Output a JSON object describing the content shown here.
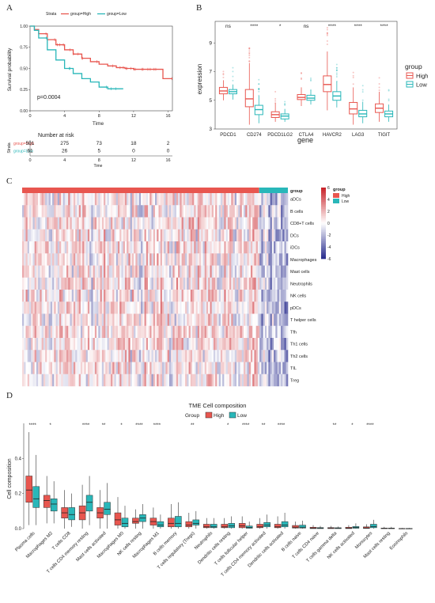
{
  "panel_labels": [
    "A",
    "B",
    "C",
    "D"
  ],
  "colors": {
    "high": "#e8564f",
    "low": "#29b7b9",
    "heat_low": "#2b2f8f",
    "heat_mid": "#ffffff",
    "heat_high": "#c9252c"
  },
  "chart_data": [
    {
      "panel": "A",
      "type": "line",
      "legend_title": "Strata",
      "legend": [
        "group=High",
        "group=Low"
      ],
      "ylabel": "Survival probability",
      "xlabel": "Time",
      "annotation": "p=0.0004",
      "xlim": [
        0,
        16.5
      ],
      "ylim": [
        0,
        1
      ],
      "x_ticks": [
        "0",
        "4",
        "8",
        "12",
        "16"
      ],
      "y_ticks": [
        "0.00",
        "0.25",
        "0.50",
        "0.75",
        "1.00"
      ],
      "series": [
        {
          "name": "group=High",
          "x": [
            0,
            0.5,
            1,
            2,
            3,
            4,
            5,
            6,
            7,
            8,
            9,
            10,
            11,
            12,
            13,
            14,
            15,
            15.4,
            16.5
          ],
          "y": [
            1.0,
            0.96,
            0.91,
            0.84,
            0.78,
            0.72,
            0.67,
            0.62,
            0.58,
            0.55,
            0.53,
            0.51,
            0.5,
            0.49,
            0.49,
            0.49,
            0.49,
            0.38,
            0.38
          ]
        },
        {
          "name": "group=Low",
          "x": [
            0,
            0.5,
            1,
            2,
            3,
            4,
            5,
            6,
            7,
            8,
            9,
            10,
            10.8
          ],
          "y": [
            1.0,
            0.95,
            0.86,
            0.72,
            0.6,
            0.5,
            0.44,
            0.38,
            0.34,
            0.28,
            0.26,
            0.26,
            0.26
          ]
        }
      ],
      "risk_table": {
        "title": "Number at risk",
        "strata_label": "Strata",
        "rows": [
          {
            "name": "group=High",
            "values": [
              "501",
              "275",
              "73",
              "18",
              "2"
            ]
          },
          {
            "name": "group=Low",
            "values": [
              "61",
              "26",
              "5",
              "0",
              "0"
            ]
          }
        ],
        "x_ticks": [
          "0",
          "4",
          "8",
          "12",
          "16"
        ],
        "xlabel": "Time"
      }
    },
    {
      "panel": "B",
      "type": "box",
      "xlabel": "gene",
      "ylabel": "expression",
      "ylim": [
        3,
        10.5
      ],
      "y_ticks": [
        "3",
        "5",
        "7",
        "9"
      ],
      "legend_title": "group",
      "legend": [
        "High",
        "Low"
      ],
      "categories": [
        "PDCD1",
        "CD274",
        "PDCD1LG2",
        "CTLA4",
        "HAVCR2",
        "LAG3",
        "TIGIT"
      ],
      "significance": [
        "ns",
        "****",
        "*",
        "ns",
        "****",
        "****",
        "****"
      ],
      "series": [
        {
          "name": "High",
          "boxes": [
            {
              "min": 5.0,
              "q1": 5.45,
              "median": 5.65,
              "q3": 5.9,
              "max": 6.4
            },
            {
              "min": 3.3,
              "q1": 4.55,
              "median": 5.1,
              "q3": 5.75,
              "max": 7.6
            },
            {
              "min": 3.5,
              "q1": 3.8,
              "median": 4.0,
              "q3": 4.2,
              "max": 4.8
            },
            {
              "min": 4.6,
              "q1": 5.05,
              "median": 5.2,
              "q3": 5.4,
              "max": 5.9
            },
            {
              "min": 4.3,
              "q1": 5.6,
              "median": 6.1,
              "q3": 6.7,
              "max": 8.4
            },
            {
              "min": 3.3,
              "q1": 4.05,
              "median": 4.4,
              "q3": 4.85,
              "max": 5.9
            },
            {
              "min": 3.5,
              "q1": 4.15,
              "median": 4.45,
              "q3": 4.75,
              "max": 5.6
            }
          ]
        },
        {
          "name": "Low",
          "boxes": [
            {
              "min": 5.05,
              "q1": 5.45,
              "median": 5.6,
              "q3": 5.75,
              "max": 6.1
            },
            {
              "min": 3.4,
              "q1": 4.0,
              "median": 4.35,
              "q3": 4.65,
              "max": 5.3
            },
            {
              "min": 3.5,
              "q1": 3.7,
              "median": 3.9,
              "q3": 4.05,
              "max": 4.4
            },
            {
              "min": 4.7,
              "q1": 5.0,
              "median": 5.15,
              "q3": 5.35,
              "max": 5.7
            },
            {
              "min": 4.5,
              "q1": 5.0,
              "median": 5.3,
              "q3": 5.6,
              "max": 6.3
            },
            {
              "min": 3.4,
              "q1": 3.85,
              "median": 4.05,
              "q3": 4.3,
              "max": 4.9
            },
            {
              "min": 3.5,
              "q1": 3.85,
              "median": 4.05,
              "q3": 4.25,
              "max": 4.7
            }
          ]
        }
      ]
    },
    {
      "panel": "C",
      "type": "heatmap",
      "annotation_label": "group",
      "annotation_legend_title": "group",
      "annotation_legend": [
        "High",
        "Low"
      ],
      "groups": [
        {
          "name": "High",
          "fraction": 0.892
        },
        {
          "name": "Low",
          "fraction": 0.108
        }
      ],
      "rows": [
        "aDCs",
        "B cells",
        "CD8+T cells",
        "DCs",
        "iDCs",
        "Macrophages",
        "Mast cells",
        "Neutrophils",
        "NK cells",
        "pDCs",
        "T helper cells",
        "Tfh",
        "Th1 cells",
        "Th2 cells",
        "TIL",
        "Treg"
      ],
      "scale_ticks": [
        "6",
        "4",
        "2",
        "0",
        "-2",
        "-4",
        "-6"
      ],
      "scale_range": [
        -6,
        6
      ]
    },
    {
      "panel": "D",
      "type": "box",
      "title": "TME Cell composition",
      "legend_title": "Group",
      "legend": [
        "High",
        "Low"
      ],
      "ylabel": "Cell composition",
      "ylim": [
        0,
        0.6
      ],
      "y_ticks": [
        "0.0",
        "0.2",
        "0.4"
      ],
      "categories": [
        "Plasma cells",
        "Macrophages M2",
        "T cells CD8",
        "T cells CD4 memory resting",
        "Mast cells activated",
        "Macrophages M0",
        "NK cells resting",
        "Macrophages M1",
        "B cells memory",
        "T cells regulatory (Tregs)",
        "Neutrophils",
        "Dendritic cells resting",
        "T cells follicular helper",
        "T cells CD4 memory activated",
        "Dendritic cells activated",
        "B cells naive",
        "T cells CD4 naive",
        "T cells gamma delta",
        "NK cells activated",
        "Monocytes",
        "Mast cells resting",
        "Eosinophils"
      ],
      "significance": [
        "****",
        "*",
        "",
        "****",
        "**",
        "*",
        "****",
        "****",
        "",
        "**",
        "",
        "*",
        "****",
        "**",
        "****",
        "",
        "",
        "**",
        "*",
        "****",
        "",
        ""
      ],
      "series": [
        {
          "name": "High",
          "boxes": [
            {
              "min": 0.02,
              "q1": 0.15,
              "median": 0.22,
              "q3": 0.3,
              "max": 0.55
            },
            {
              "min": 0.03,
              "q1": 0.12,
              "median": 0.16,
              "q3": 0.19,
              "max": 0.3
            },
            {
              "min": 0.0,
              "q1": 0.06,
              "median": 0.09,
              "q3": 0.12,
              "max": 0.22
            },
            {
              "min": 0.0,
              "q1": 0.05,
              "median": 0.09,
              "q3": 0.13,
              "max": 0.25
            },
            {
              "min": 0.0,
              "q1": 0.06,
              "median": 0.09,
              "q3": 0.12,
              "max": 0.22
            },
            {
              "min": 0.0,
              "q1": 0.02,
              "median": 0.05,
              "q3": 0.09,
              "max": 0.18
            },
            {
              "min": 0.0,
              "q1": 0.03,
              "median": 0.04,
              "q3": 0.06,
              "max": 0.11
            },
            {
              "min": 0.0,
              "q1": 0.02,
              "median": 0.04,
              "q3": 0.06,
              "max": 0.12
            },
            {
              "min": 0.0,
              "q1": 0.01,
              "median": 0.03,
              "q3": 0.06,
              "max": 0.14
            },
            {
              "min": 0.0,
              "q1": 0.01,
              "median": 0.02,
              "q3": 0.04,
              "max": 0.09
            },
            {
              "min": 0.0,
              "q1": 0.005,
              "median": 0.01,
              "q3": 0.025,
              "max": 0.06
            },
            {
              "min": 0.0,
              "q1": 0.005,
              "median": 0.01,
              "q3": 0.025,
              "max": 0.06
            },
            {
              "min": 0.0,
              "q1": 0.005,
              "median": 0.015,
              "q3": 0.03,
              "max": 0.07
            },
            {
              "min": 0.0,
              "q1": 0.005,
              "median": 0.01,
              "q3": 0.025,
              "max": 0.06
            },
            {
              "min": 0.0,
              "q1": 0.005,
              "median": 0.01,
              "q3": 0.025,
              "max": 0.07
            },
            {
              "min": 0.0,
              "q1": 0.003,
              "median": 0.008,
              "q3": 0.018,
              "max": 0.04
            },
            {
              "min": 0.0,
              "q1": 0.0,
              "median": 0.003,
              "q3": 0.008,
              "max": 0.02
            },
            {
              "min": 0.0,
              "q1": 0.0,
              "median": 0.002,
              "q3": 0.006,
              "max": 0.015
            },
            {
              "min": 0.0,
              "q1": 0.0,
              "median": 0.003,
              "q3": 0.008,
              "max": 0.02
            },
            {
              "min": 0.0,
              "q1": 0.001,
              "median": 0.004,
              "q3": 0.01,
              "max": 0.025
            },
            {
              "min": 0.0,
              "q1": 0.0,
              "median": 0.001,
              "q3": 0.003,
              "max": 0.01
            },
            {
              "min": 0.0,
              "q1": 0.0,
              "median": 0.0,
              "q3": 0.001,
              "max": 0.004
            }
          ]
        },
        {
          "name": "Low",
          "boxes": [
            {
              "min": 0.02,
              "q1": 0.12,
              "median": 0.17,
              "q3": 0.24,
              "max": 0.42
            },
            {
              "min": 0.03,
              "q1": 0.1,
              "median": 0.14,
              "q3": 0.17,
              "max": 0.27
            },
            {
              "min": 0.01,
              "q1": 0.05,
              "median": 0.08,
              "q3": 0.12,
              "max": 0.2
            },
            {
              "min": 0.02,
              "q1": 0.1,
              "median": 0.15,
              "q3": 0.19,
              "max": 0.3
            },
            {
              "min": 0.0,
              "q1": 0.08,
              "median": 0.11,
              "q3": 0.15,
              "max": 0.26
            },
            {
              "min": 0.0,
              "q1": 0.01,
              "median": 0.03,
              "q3": 0.06,
              "max": 0.13
            },
            {
              "min": 0.0,
              "q1": 0.04,
              "median": 0.06,
              "q3": 0.08,
              "max": 0.14
            },
            {
              "min": 0.0,
              "q1": 0.01,
              "median": 0.02,
              "q3": 0.04,
              "max": 0.08
            },
            {
              "min": 0.0,
              "q1": 0.01,
              "median": 0.03,
              "q3": 0.07,
              "max": 0.15
            },
            {
              "min": 0.0,
              "q1": 0.02,
              "median": 0.03,
              "q3": 0.05,
              "max": 0.1
            },
            {
              "min": 0.0,
              "q1": 0.005,
              "median": 0.01,
              "q3": 0.025,
              "max": 0.06
            },
            {
              "min": 0.0,
              "q1": 0.005,
              "median": 0.015,
              "q3": 0.03,
              "max": 0.07
            },
            {
              "min": 0.0,
              "q1": 0.002,
              "median": 0.006,
              "q3": 0.015,
              "max": 0.04
            },
            {
              "min": 0.0,
              "q1": 0.01,
              "median": 0.02,
              "q3": 0.035,
              "max": 0.08
            },
            {
              "min": 0.0,
              "q1": 0.01,
              "median": 0.02,
              "q3": 0.04,
              "max": 0.09
            },
            {
              "min": 0.0,
              "q1": 0.003,
              "median": 0.008,
              "q3": 0.02,
              "max": 0.045
            },
            {
              "min": 0.0,
              "q1": 0.0,
              "median": 0.002,
              "q3": 0.006,
              "max": 0.015
            },
            {
              "min": 0.0,
              "q1": 0.0,
              "median": 0.002,
              "q3": 0.005,
              "max": 0.012
            },
            {
              "min": 0.0,
              "q1": 0.002,
              "median": 0.006,
              "q3": 0.012,
              "max": 0.03
            },
            {
              "min": 0.0,
              "q1": 0.005,
              "median": 0.012,
              "q3": 0.025,
              "max": 0.05
            },
            {
              "min": 0.0,
              "q1": 0.0,
              "median": 0.001,
              "q3": 0.003,
              "max": 0.01
            },
            {
              "min": 0.0,
              "q1": 0.0,
              "median": 0.0,
              "q3": 0.001,
              "max": 0.004
            }
          ]
        }
      ]
    }
  ]
}
